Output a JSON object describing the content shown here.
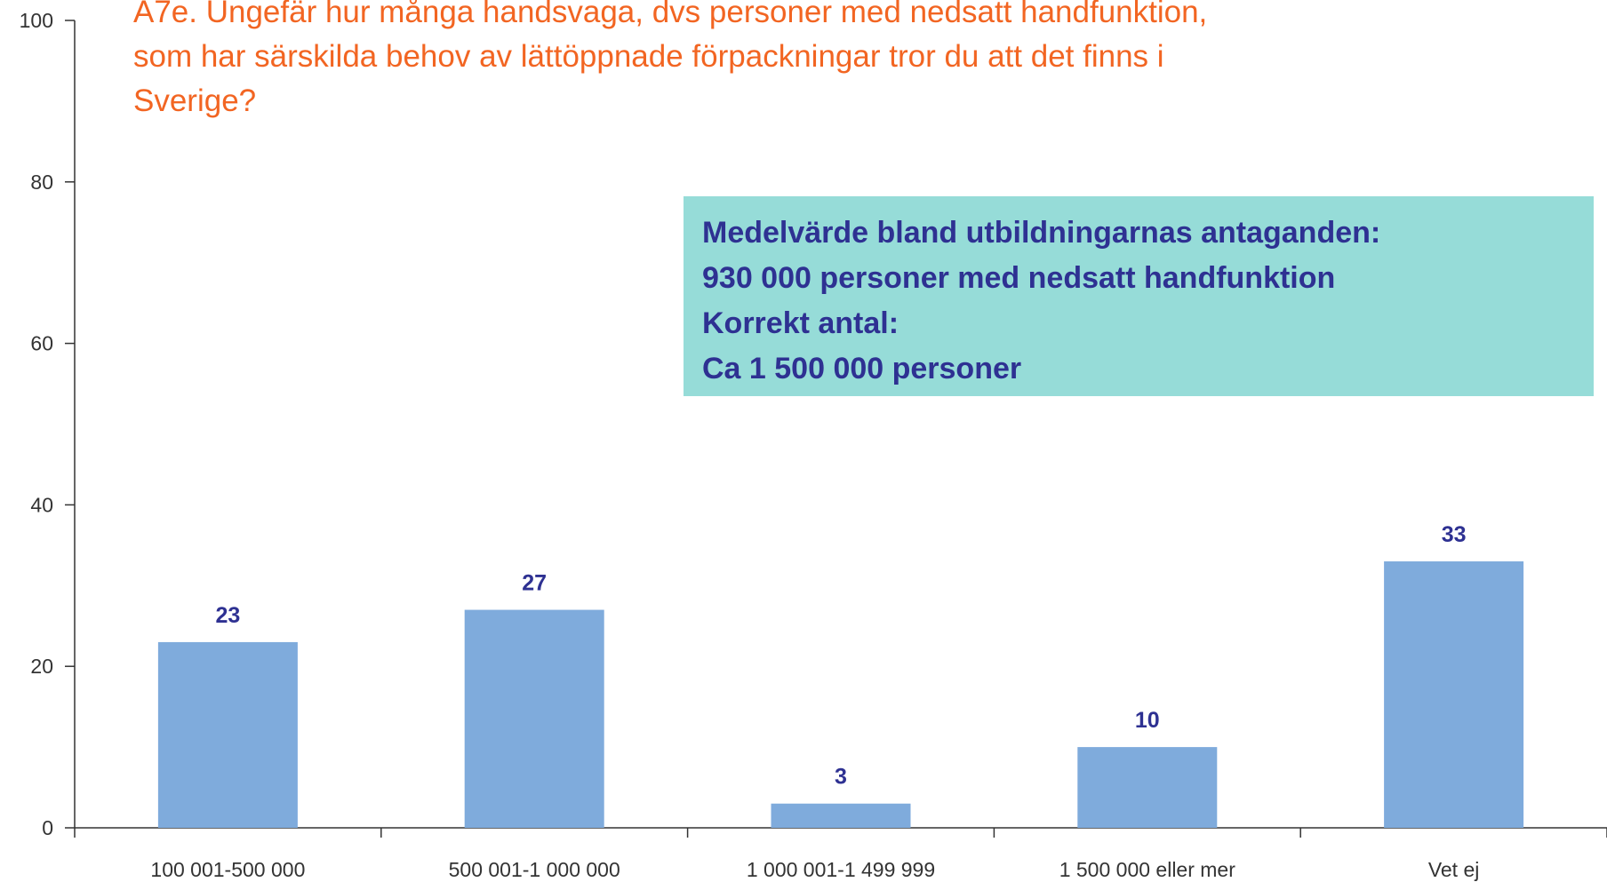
{
  "chart_data": {
    "type": "bar",
    "title": [
      "A7e. Ungefär hur många handsvaga, dvs personer med nedsatt handfunktion,",
      "som har särskilda behov av lättöppnade förpackningar tror du att det finns i",
      "Sverige?"
    ],
    "annotation": [
      "Medelvärde bland utbildningarnas antaganden:",
      "930 000 personer med nedsatt handfunktion",
      "Korrekt antal:",
      "Ca 1 500 000 personer"
    ],
    "categories": [
      "100 001-500 000",
      "500 001-1 000 000",
      "1 000 001-1 499 999",
      "1 500 000 eller mer",
      "Vet ej"
    ],
    "values": [
      23,
      27,
      3,
      10,
      33
    ],
    "color": "#7fabdc",
    "ylim": [
      0,
      100
    ],
    "yticks": [
      0,
      20,
      40,
      60,
      80,
      100
    ],
    "grid": false
  }
}
